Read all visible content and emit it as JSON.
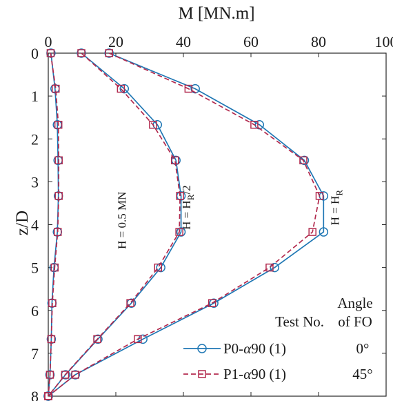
{
  "chart_data": {
    "type": "line",
    "orientation": "inverted-depth",
    "xlabel": "M [MN.m]",
    "ylabel": "z/D",
    "xlim": [
      0,
      100
    ],
    "ylim": [
      0,
      8
    ],
    "x_ticks": [
      0,
      20,
      40,
      60,
      80,
      100
    ],
    "y_ticks": [
      0,
      1,
      2,
      3,
      4,
      5,
      6,
      7,
      8
    ],
    "y_axis_inverted": true,
    "x_axis_position": "top",
    "grid": false,
    "legend_placement": "bottom-right",
    "legend_header": [
      "Test No.",
      "Angle",
      "of FO"
    ],
    "depth_points": [
      0,
      0.83,
      1.67,
      2.5,
      3.33,
      4.17,
      5,
      5.83,
      6.67,
      7.5,
      8
    ],
    "annotations": [
      {
        "text": "H = 0.5 MN",
        "near_curve": "small"
      },
      {
        "text": "H = H",
        "subscript": "R",
        "suffix": "/2",
        "near_curve": "half"
      },
      {
        "text": "H = H",
        "subscript": "R",
        "suffix": "",
        "near_curve": "full"
      }
    ],
    "series": [
      {
        "name": "P0-α90 (1)",
        "name_prefix": "P0-",
        "name_greek": "α",
        "name_suffix": "90  (1)",
        "angle": "0°",
        "color": "#1f77b4",
        "marker": "circle",
        "line_style": "solid",
        "curves": {
          "small": [
            0.8,
            2.0,
            2.7,
            2.9,
            3.0,
            2.7,
            1.7,
            1.1,
            0.9,
            0.5,
            0
          ],
          "half": [
            9.8,
            22.5,
            32.3,
            37.8,
            39.3,
            39.3,
            33.3,
            24.6,
            14.7,
            5.1,
            0
          ],
          "full": [
            18.0,
            43.5,
            62.5,
            75.8,
            81.5,
            81.5,
            67.0,
            49.0,
            28.0,
            8.0,
            0
          ]
        }
      },
      {
        "name": "P1-α90 (1)",
        "name_prefix": "P1-",
        "name_greek": "α",
        "name_suffix": "90  (1)",
        "angle": "45°",
        "color": "#b22a4e",
        "marker": "square",
        "line_style": "dashed",
        "curves": {
          "small": [
            0.7,
            2.2,
            3.0,
            3.1,
            3.1,
            2.8,
            1.9,
            1.2,
            0.9,
            0.5,
            0
          ],
          "half": [
            9.8,
            21.5,
            31.0,
            37.5,
            39.0,
            38.8,
            32.5,
            24.3,
            14.5,
            5.0,
            0
          ],
          "full": [
            18.0,
            41.5,
            61.0,
            75.5,
            80.3,
            78.2,
            65.5,
            48.5,
            26.5,
            8.0,
            0
          ]
        }
      }
    ]
  }
}
